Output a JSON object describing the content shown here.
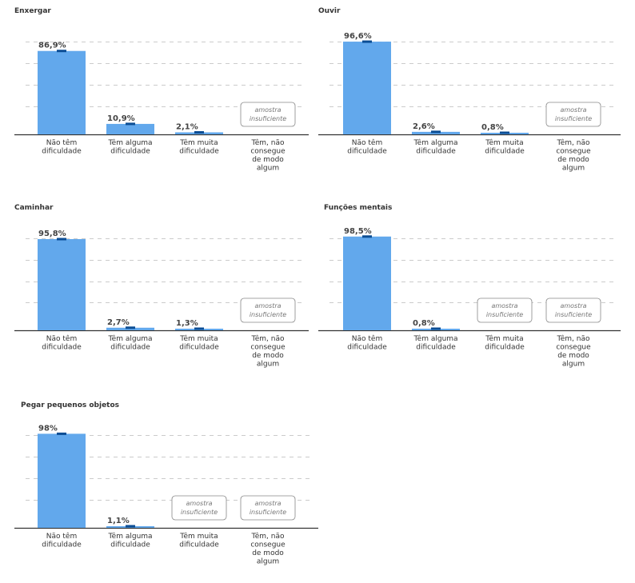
{
  "colors": {
    "bar": "#62a8ec",
    "error_bar": "#0b4d94",
    "grid": "#bbbbbb",
    "axis": "#333333",
    "label": "#444444",
    "insufficient_border": "#888888",
    "insufficient_text": "#777777"
  },
  "insufficient_label": [
    "amostra",
    "insuficiente"
  ],
  "chart_data": [
    {
      "type": "bar",
      "title": "Enxergar",
      "categories": [
        "Não têm dificuldade",
        "Têm alguma dificuldade",
        "Têm muita dificuldade",
        "Têm, não consegue de modo algum"
      ],
      "values": [
        86.9,
        10.9,
        2.1,
        null
      ],
      "value_labels": [
        "86,9%",
        "10,9%",
        "2,1%",
        null
      ],
      "insufficient": [
        false,
        false,
        false,
        true
      ],
      "ylim": [
        0,
        100
      ],
      "grid": true
    },
    {
      "type": "bar",
      "title": "Ouvir",
      "categories": [
        "Não têm dificuldade",
        "Têm alguma dificuldade",
        "Têm muita dificuldade",
        "Têm, não consegue de modo algum"
      ],
      "values": [
        96.6,
        2.6,
        0.8,
        null
      ],
      "value_labels": [
        "96,6%",
        "2,6%",
        "0,8%",
        null
      ],
      "insufficient": [
        false,
        false,
        false,
        true
      ],
      "ylim": [
        0,
        100
      ],
      "grid": true
    },
    {
      "type": "bar",
      "title": "Caminhar",
      "categories": [
        "Não têm dificuldade",
        "Têm alguma dificuldade",
        "Têm muita dificuldade",
        "Têm, não consegue de modo algum"
      ],
      "values": [
        95.8,
        2.7,
        1.3,
        null
      ],
      "value_labels": [
        "95,8%",
        "2,7%",
        "1,3%",
        null
      ],
      "insufficient": [
        false,
        false,
        false,
        true
      ],
      "ylim": [
        0,
        100
      ],
      "grid": true
    },
    {
      "type": "bar",
      "title": "Funções mentais",
      "categories": [
        "Não têm dificuldade",
        "Têm alguma dificuldade",
        "Têm muita dificuldade",
        "Têm, não consegue de modo algum"
      ],
      "values": [
        98.5,
        0.8,
        null,
        null
      ],
      "value_labels": [
        "98,5%",
        "0,8%",
        null,
        null
      ],
      "insufficient": [
        false,
        false,
        true,
        true
      ],
      "ylim": [
        0,
        100
      ],
      "grid": true
    },
    {
      "type": "bar",
      "title": "Pegar pequenos objetos",
      "categories": [
        "Não têm dificuldade",
        "Têm alguma dificuldade",
        "Têm muita dificuldade",
        "Têm, não consegue de modo algum"
      ],
      "values": [
        98,
        1.1,
        null,
        null
      ],
      "value_labels": [
        "98%",
        "1,1%",
        null,
        null
      ],
      "insufficient": [
        false,
        false,
        true,
        true
      ],
      "ylim": [
        0,
        100
      ],
      "grid": true
    }
  ]
}
